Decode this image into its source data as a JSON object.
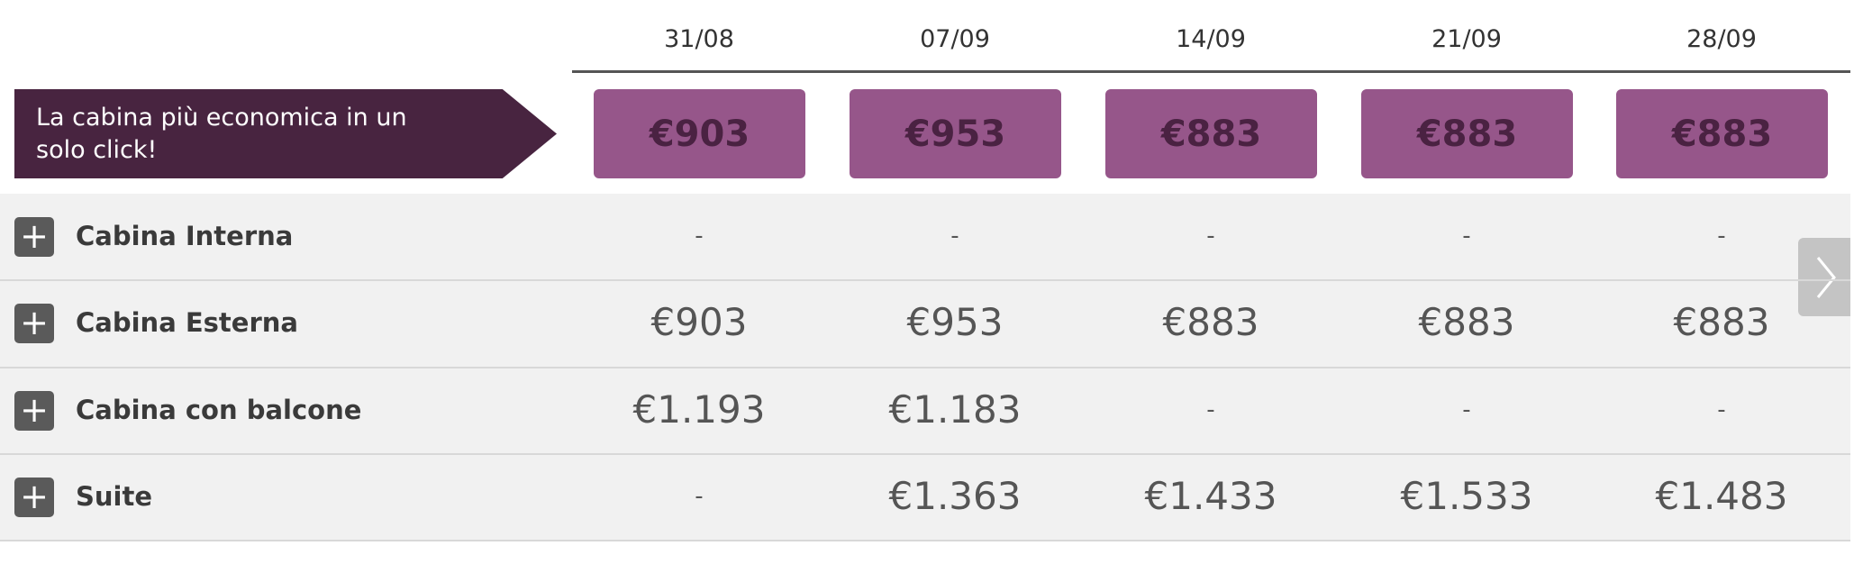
{
  "header": {
    "dates": [
      "31/08",
      "07/09",
      "14/09",
      "21/09",
      "28/09"
    ]
  },
  "banner": {
    "label": "La cabina più economica in un solo click!",
    "prices": [
      "€903",
      "€953",
      "€883",
      "€883",
      "€883"
    ]
  },
  "rows": [
    {
      "name": "Cabina Interna",
      "prices": [
        "-",
        "-",
        "-",
        "-",
        "-"
      ]
    },
    {
      "name": "Cabina Esterna",
      "prices": [
        "€903",
        "€953",
        "€883",
        "€883",
        "€883"
      ]
    },
    {
      "name": "Cabina con balcone",
      "prices": [
        "€1.193",
        "€1.183",
        "-",
        "-",
        "-"
      ]
    },
    {
      "name": "Suite",
      "prices": [
        "-",
        "€1.363",
        "€1.433",
        "€1.533",
        "€1.483"
      ]
    }
  ]
}
